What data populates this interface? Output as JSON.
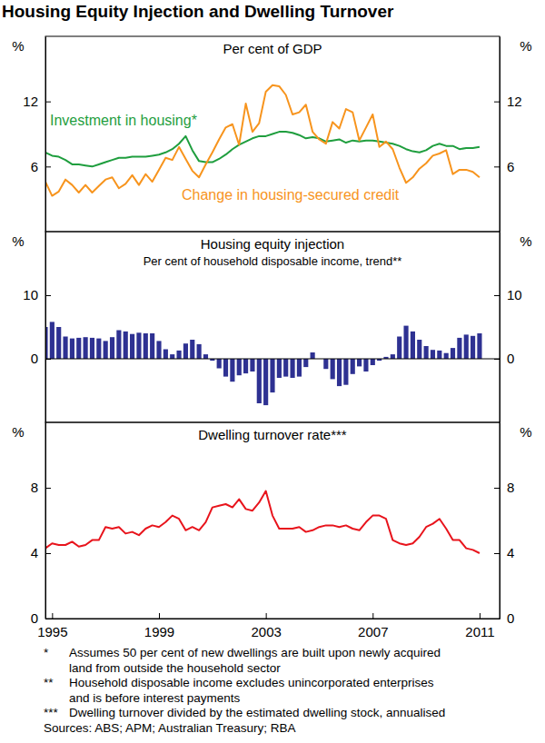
{
  "title": "Housing Equity Injection and Dwelling Turnover",
  "chart_data": [
    {
      "type": "line",
      "title": "Per cent of GDP",
      "ylabel": "%",
      "y2label": "%",
      "x": [
        1994.75,
        1995,
        1995.25,
        1995.5,
        1995.75,
        1996,
        1996.25,
        1996.5,
        1996.75,
        1997,
        1997.25,
        1997.5,
        1997.75,
        1998,
        1998.25,
        1998.5,
        1998.75,
        1999,
        1999.25,
        1999.5,
        1999.75,
        2000,
        2000.25,
        2000.5,
        2000.75,
        2001,
        2001.25,
        2001.5,
        2001.75,
        2002,
        2002.25,
        2002.5,
        2002.75,
        2003,
        2003.25,
        2003.5,
        2003.75,
        2004,
        2004.25,
        2004.5,
        2004.75,
        2005,
        2005.25,
        2005.5,
        2005.75,
        2006,
        2006.25,
        2006.5,
        2006.75,
        2007,
        2007.25,
        2007.5,
        2007.75,
        2008,
        2008.25,
        2008.5,
        2008.75,
        2009,
        2009.25,
        2009.5,
        2009.75,
        2010,
        2010.25,
        2010.5,
        2010.75,
        2011
      ],
      "series": [
        {
          "name": "Investment in housing*",
          "color": "#1f9e3e",
          "values": [
            7.3,
            7.0,
            6.9,
            6.6,
            6.2,
            6.2,
            6.1,
            6.0,
            6.2,
            6.4,
            6.6,
            6.8,
            6.8,
            6.9,
            6.9,
            6.9,
            7.0,
            7.1,
            7.3,
            7.6,
            8.1,
            8.8,
            7.5,
            6.5,
            6.4,
            6.4,
            6.7,
            7.1,
            7.6,
            8.0,
            8.3,
            8.6,
            8.8,
            8.8,
            9.0,
            9.2,
            9.2,
            9.1,
            8.9,
            8.6,
            8.7,
            8.6,
            8.3,
            8.4,
            8.5,
            8.2,
            8.4,
            8.3,
            8.4,
            8.4,
            8.3,
            8.2,
            8.1,
            7.9,
            7.6,
            7.4,
            7.3,
            7.5,
            7.9,
            8.1,
            7.9,
            7.9,
            7.6,
            7.7,
            7.7,
            7.8
          ]
        },
        {
          "name": "Change in housing-secured credit",
          "color": "#f7941d",
          "values": [
            4.6,
            3.3,
            3.7,
            4.8,
            4.3,
            3.6,
            4.3,
            3.6,
            4.2,
            4.8,
            5.0,
            4.0,
            4.4,
            5.2,
            4.3,
            5.3,
            4.6,
            5.7,
            6.8,
            6.6,
            7.8,
            6.7,
            5.6,
            5.0,
            6.2,
            7.3,
            8.5,
            9.6,
            9.9,
            8.0,
            11.8,
            9.2,
            10.0,
            12.9,
            13.5,
            13.4,
            12.6,
            10.8,
            11.0,
            11.7,
            9.2,
            8.5,
            8.1,
            10.1,
            9.5,
            11.3,
            11.0,
            8.4,
            9.6,
            10.8,
            7.8,
            8.3,
            7.6,
            5.9,
            4.5,
            5.0,
            5.8,
            6.3,
            7.0,
            7.2,
            7.5,
            5.3,
            5.7,
            5.7,
            5.5,
            5.0
          ]
        }
      ],
      "xlim": [
        1994.75,
        2011.75
      ],
      "ylim": [
        0,
        18
      ],
      "yticks": [
        6,
        12
      ],
      "y2lim": [
        0,
        18
      ],
      "y2ticks": [
        6,
        12
      ],
      "grid": false,
      "tick_labels": "y"
    },
    {
      "type": "bar",
      "title": "Housing equity injection",
      "subtitle": "Per cent of household disposable income, trend**",
      "ylabel": "%",
      "y2label": "%",
      "x": [
        1994.75,
        1995,
        1995.25,
        1995.5,
        1995.75,
        1996,
        1996.25,
        1996.5,
        1996.75,
        1997,
        1997.25,
        1997.5,
        1997.75,
        1998,
        1998.25,
        1998.5,
        1998.75,
        1999,
        1999.25,
        1999.5,
        1999.75,
        2000,
        2000.25,
        2000.5,
        2000.75,
        2001,
        2001.25,
        2001.5,
        2001.75,
        2002,
        2002.25,
        2002.5,
        2002.75,
        2003,
        2003.25,
        2003.5,
        2003.75,
        2004,
        2004.25,
        2004.5,
        2004.75,
        2005,
        2005.25,
        2005.5,
        2005.75,
        2006,
        2006.25,
        2006.5,
        2006.75,
        2007,
        2007.25,
        2007.5,
        2007.75,
        2008,
        2008.25,
        2008.5,
        2008.75,
        2009,
        2009.25,
        2009.5,
        2009.75,
        2010,
        2010.25,
        2010.5,
        2010.75,
        2011
      ],
      "series": [
        {
          "color": "#2e3192",
          "values": [
            5.0,
            5.8,
            5.0,
            3.5,
            3.2,
            3.3,
            3.4,
            3.3,
            3.2,
            2.8,
            3.4,
            4.5,
            4.3,
            3.9,
            4.1,
            4.0,
            4.0,
            2.8,
            1.5,
            0.7,
            1.3,
            2.4,
            3.0,
            2.3,
            0.7,
            -0.3,
            -1.5,
            -2.8,
            -3.6,
            -2.6,
            -2.3,
            -2.0,
            -7.0,
            -7.3,
            -5.3,
            -3.0,
            -2.8,
            -3.0,
            -2.8,
            -1.3,
            1.0,
            0.0,
            -1.6,
            -3.2,
            -4.3,
            -4.1,
            -2.4,
            -1.2,
            -2.0,
            -1.0,
            -0.3,
            0.3,
            0.7,
            3.5,
            5.2,
            4.3,
            3.0,
            2.0,
            1.4,
            1.3,
            0.9,
            1.7,
            3.3,
            3.8,
            3.6,
            4.0
          ]
        }
      ],
      "xlim": [
        1994.75,
        2011.75
      ],
      "ylim": [
        -10,
        20
      ],
      "yticks": [
        0,
        10
      ],
      "y2lim": [
        -10,
        20
      ],
      "y2ticks": [
        0,
        10
      ],
      "grid": false,
      "tick_labels": "y"
    },
    {
      "type": "line",
      "title": "Dwelling turnover rate***",
      "ylabel": "%",
      "y2label": "%",
      "x": [
        1994.75,
        1995,
        1995.25,
        1995.5,
        1995.75,
        1996,
        1996.25,
        1996.5,
        1996.75,
        1997,
        1997.25,
        1997.5,
        1997.75,
        1998,
        1998.25,
        1998.5,
        1998.75,
        1999,
        1999.25,
        1999.5,
        1999.75,
        2000,
        2000.25,
        2000.5,
        2000.75,
        2001,
        2001.25,
        2001.5,
        2001.75,
        2002,
        2002.25,
        2002.5,
        2002.75,
        2003,
        2003.25,
        2003.5,
        2003.75,
        2004,
        2004.25,
        2004.5,
        2004.75,
        2005,
        2005.25,
        2005.5,
        2005.75,
        2006,
        2006.25,
        2006.5,
        2006.75,
        2007,
        2007.25,
        2007.5,
        2007.75,
        2008,
        2008.25,
        2008.5,
        2008.75,
        2009,
        2009.25,
        2009.5,
        2009.75,
        2010,
        2010.25,
        2010.5,
        2010.75,
        2011
      ],
      "series": [
        {
          "color": "#e8141c",
          "values": [
            4.3,
            4.6,
            4.5,
            4.5,
            4.7,
            4.4,
            4.5,
            4.8,
            4.8,
            5.6,
            5.5,
            5.6,
            5.2,
            5.3,
            5.1,
            5.5,
            5.7,
            5.6,
            5.9,
            6.3,
            6.1,
            5.4,
            5.6,
            5.4,
            5.9,
            6.8,
            6.9,
            7.0,
            6.8,
            7.3,
            6.7,
            6.6,
            7.1,
            7.8,
            6.3,
            5.5,
            5.5,
            5.5,
            5.6,
            5.3,
            5.4,
            5.6,
            5.7,
            5.7,
            5.6,
            5.7,
            5.5,
            5.4,
            5.9,
            6.3,
            6.3,
            6.1,
            4.8,
            4.6,
            4.5,
            4.6,
            5.0,
            5.6,
            5.8,
            6.1,
            5.5,
            4.8,
            4.8,
            4.3,
            4.2,
            4.0
          ]
        }
      ],
      "xlim": [
        1994.75,
        2011.75
      ],
      "xticks": [
        1995,
        1999,
        2003,
        2007,
        2011
      ],
      "ylim": [
        0,
        12
      ],
      "yticks": [
        0,
        4,
        8
      ],
      "y2lim": [
        0,
        12
      ],
      "y2ticks": [
        0,
        4,
        8
      ],
      "grid": false
    }
  ],
  "footnotes": [
    {
      "marker": "*",
      "lines": [
        "Assumes 50 per cent of new dwellings are built upon newly acquired",
        "land from outside the household sector"
      ]
    },
    {
      "marker": "**",
      "lines": [
        "Household disposable income excludes unincorporated enterprises",
        "and is before interest payments"
      ]
    },
    {
      "marker": "***",
      "lines": [
        "Dwelling turnover divided by the estimated dwelling stock, annualised"
      ]
    }
  ],
  "sources": "Sources: ABS; APM; Australian Treasury; RBA"
}
